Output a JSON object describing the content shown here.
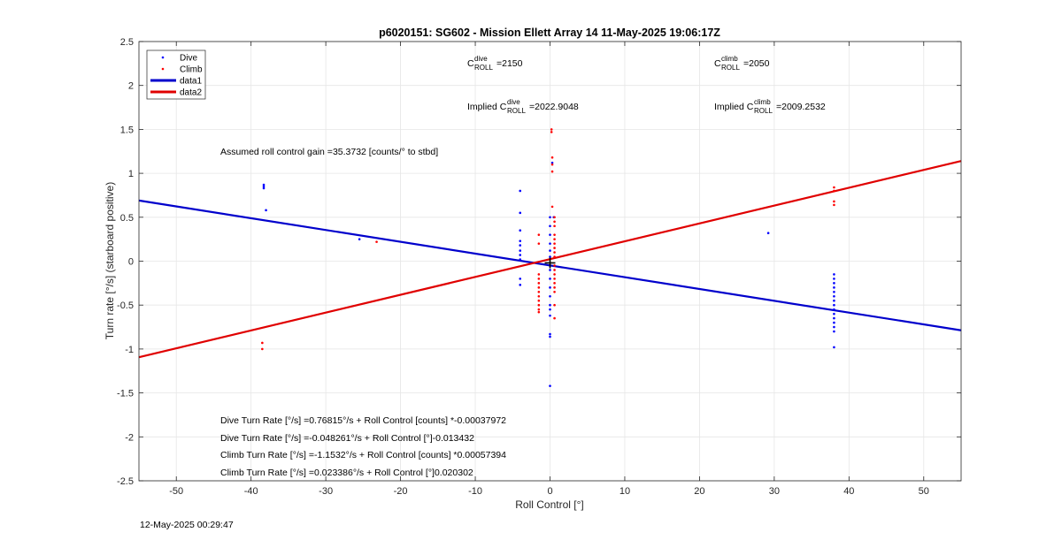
{
  "chart_data": {
    "type": "scatter",
    "title": "p6020151: SG602 - Mission Ellett Array 14 11-May-2025 19:06:17Z",
    "xlabel": "Roll Control [°]",
    "ylabel": "Turn rate [°/s] (starboard positive)",
    "xlim": [
      -55,
      55
    ],
    "ylim": [
      -2.5,
      2.5
    ],
    "xticks": [
      -50,
      -40,
      -30,
      -20,
      -10,
      0,
      10,
      20,
      30,
      40,
      50
    ],
    "yticks": [
      -2.5,
      -2,
      -1.5,
      -1,
      -0.5,
      0,
      0.5,
      1,
      1.5,
      2,
      2.5
    ],
    "grid": true,
    "legend_location": "top-left",
    "series": [
      {
        "name": "Dive",
        "kind": "points",
        "color": "#0000ff",
        "points": [
          [
            -38.3,
            0.87
          ],
          [
            -38.3,
            0.85
          ],
          [
            -38.3,
            0.83
          ],
          [
            -38,
            0.58
          ],
          [
            -25.5,
            0.25
          ],
          [
            -4,
            0.8
          ],
          [
            -4,
            0.55
          ],
          [
            -4,
            0.35
          ],
          [
            -4,
            0.23
          ],
          [
            -4,
            0.18
          ],
          [
            -4,
            0.12
          ],
          [
            -4,
            0.07
          ],
          [
            -4,
            0.02
          ],
          [
            -4,
            -0.2
          ],
          [
            -4,
            -0.27
          ],
          [
            0,
            0.5
          ],
          [
            0,
            0.4
          ],
          [
            0,
            0.3
          ],
          [
            0,
            0.2
          ],
          [
            0,
            0.12
          ],
          [
            0,
            0.05
          ],
          [
            0,
            -0.05
          ],
          [
            0,
            -0.1
          ],
          [
            0,
            -0.2
          ],
          [
            0,
            -0.3
          ],
          [
            0,
            -0.4
          ],
          [
            0,
            -0.5
          ],
          [
            0,
            -0.55
          ],
          [
            0,
            -0.62
          ],
          [
            0,
            -0.83
          ],
          [
            0,
            -0.86
          ],
          [
            0,
            -1.42
          ],
          [
            0.5,
            0.5
          ],
          [
            0.3,
            1.12
          ],
          [
            29.2,
            0.32
          ],
          [
            38,
            -0.15
          ],
          [
            38,
            -0.2
          ],
          [
            38,
            -0.25
          ],
          [
            38,
            -0.3
          ],
          [
            38,
            -0.35
          ],
          [
            38,
            -0.4
          ],
          [
            38,
            -0.45
          ],
          [
            38,
            -0.5
          ],
          [
            38,
            -0.55
          ],
          [
            38,
            -0.6
          ],
          [
            38,
            -0.65
          ],
          [
            38,
            -0.7
          ],
          [
            38,
            -0.75
          ],
          [
            38,
            -0.8
          ],
          [
            38,
            -0.98
          ]
        ]
      },
      {
        "name": "Climb",
        "kind": "points",
        "color": "#ff0000",
        "points": [
          [
            -38.5,
            -0.93
          ],
          [
            -38.5,
            -1.0
          ],
          [
            -23.2,
            0.22
          ],
          [
            -1.5,
            0.3
          ],
          [
            -1.5,
            0.2
          ],
          [
            -1.5,
            -0.15
          ],
          [
            -1.5,
            -0.2
          ],
          [
            -1.5,
            -0.25
          ],
          [
            -1.5,
            -0.3
          ],
          [
            -1.5,
            -0.35
          ],
          [
            -1.5,
            -0.4
          ],
          [
            -1.5,
            -0.45
          ],
          [
            -1.5,
            -0.5
          ],
          [
            -1.5,
            -0.55
          ],
          [
            -1.5,
            -0.58
          ],
          [
            0.2,
            1.5
          ],
          [
            0.2,
            1.47
          ],
          [
            0.3,
            1.18
          ],
          [
            0.3,
            1.1
          ],
          [
            0.3,
            1.02
          ],
          [
            0.3,
            0.62
          ],
          [
            0.6,
            0.5
          ],
          [
            0.6,
            0.45
          ],
          [
            0.6,
            0.4
          ],
          [
            0.6,
            0.3
          ],
          [
            0.6,
            0.25
          ],
          [
            0.6,
            0.2
          ],
          [
            0.6,
            0.15
          ],
          [
            0.6,
            0.1
          ],
          [
            0.6,
            0.05
          ],
          [
            0.6,
            -0.05
          ],
          [
            0.6,
            -0.1
          ],
          [
            0.6,
            -0.15
          ],
          [
            0.6,
            -0.2
          ],
          [
            0.6,
            -0.25
          ],
          [
            0.6,
            -0.3
          ],
          [
            0.6,
            -0.35
          ],
          [
            0.6,
            -0.5
          ],
          [
            0.6,
            -0.65
          ],
          [
            38,
            0.84
          ],
          [
            38,
            0.8
          ],
          [
            38,
            0.68
          ],
          [
            38,
            0.64
          ]
        ]
      },
      {
        "name": "data1",
        "kind": "line",
        "color": "#0000cc",
        "slope": -0.013432,
        "intercept": -0.048261
      },
      {
        "name": "data2",
        "kind": "line",
        "color": "#e00000",
        "slope": 0.020302,
        "intercept": 0.023386
      }
    ],
    "center_marker": [
      0,
      -0.02
    ],
    "annotations": {
      "c_roll_dive": {
        "prefix": "C",
        "sup": "dive",
        "sub": "ROLL",
        "value": "=2150"
      },
      "c_roll_climb": {
        "prefix": "C",
        "sup": "climb",
        "sub": "ROLL",
        "value": "=2050"
      },
      "implied_dive": {
        "prefix": "Implied C",
        "sup": "dive",
        "sub": "ROLL",
        "value": "=2022.9048"
      },
      "implied_climb": {
        "prefix": "Implied C",
        "sup": "climb",
        "sub": "ROLL",
        "value": "=2009.2532"
      },
      "gain": "Assumed roll control gain =35.3732 [counts/° to stbd]",
      "eq1": "Dive Turn Rate [°/s] =0.76815°/s + Roll Control [counts] *-0.00037972",
      "eq2": "Dive Turn Rate [°/s] =-0.048261°/s + Roll Control [°]-0.013432",
      "eq3": "Climb Turn Rate [°/s] =-1.1532°/s + Roll Control [counts] *0.00057394",
      "eq4": "Climb Turn Rate [°/s] =0.023386°/s + Roll Control [°]0.020302"
    }
  },
  "footer": {
    "timestamp": "12-May-2025 00:29:47"
  }
}
